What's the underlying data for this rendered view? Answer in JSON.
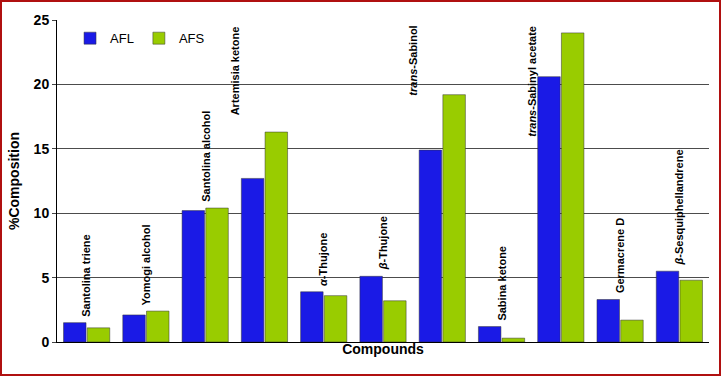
{
  "chart_data": {
    "type": "bar",
    "xlabel": "Compounds",
    "ylabel": "%Composition",
    "categories": [
      "Santolina triene",
      "Yomogi alcohol",
      "Santolina alcohol",
      "Artemisia ketone",
      "α-Thujone",
      "β-Thujone",
      "trans-Sabinol",
      "Sabina ketone",
      "trans-Sabinyl acetate",
      "Germacrene D",
      "β-Sesquiphellandrene"
    ],
    "series": [
      {
        "name": "AFL",
        "color": "#1a1ae6",
        "values": [
          1.5,
          2.1,
          10.2,
          12.7,
          3.9,
          5.1,
          14.9,
          1.2,
          20.6,
          3.3,
          5.5
        ]
      },
      {
        "name": "AFS",
        "color": "#99cc00",
        "values": [
          1.1,
          2.4,
          10.4,
          16.3,
          3.6,
          3.2,
          19.2,
          0.3,
          24.0,
          1.7,
          4.8
        ]
      }
    ],
    "ylim": [
      0,
      25
    ],
    "yticks": [
      0,
      5,
      10,
      15,
      20,
      25
    ],
    "grid": true,
    "legend": "top-left",
    "tick_labels": "y"
  }
}
